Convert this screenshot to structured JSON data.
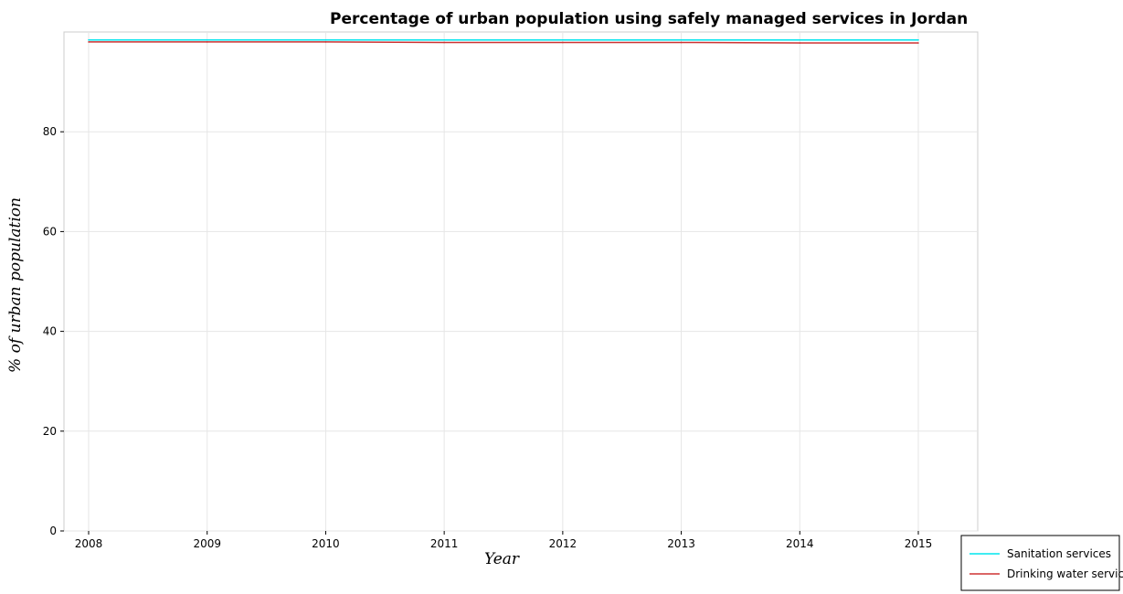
{
  "chart_data": {
    "type": "line",
    "title": "Percentage of urban population using safely managed services in Jordan",
    "xlabel": "Year",
    "ylabel": "% of urban population",
    "categories": [
      "2008",
      "2009",
      "2010",
      "2011",
      "2012",
      "2013",
      "2014",
      "2015"
    ],
    "ylim": [
      0,
      100
    ],
    "yticks": [
      0,
      20,
      40,
      60,
      80
    ],
    "grid": true,
    "legend_position": "bottom-right",
    "series": [
      {
        "name": "Sanitation services",
        "color": "#00e5ee",
        "values": [
          98.4,
          98.4,
          98.4,
          98.4,
          98.4,
          98.4,
          98.4,
          98.4
        ]
      },
      {
        "name": "Drinking water services",
        "color": "#cd3333",
        "values": [
          98.0,
          98.0,
          98.0,
          97.9,
          97.9,
          97.9,
          97.8,
          97.8
        ]
      }
    ]
  }
}
